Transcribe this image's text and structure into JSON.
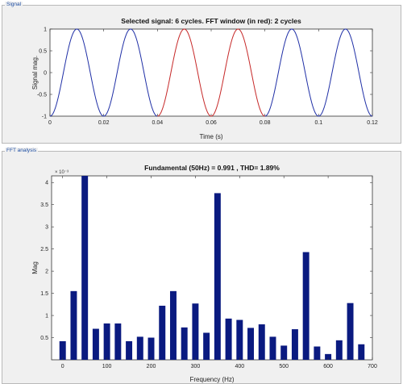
{
  "panels": {
    "signal": {
      "title": "Signal"
    },
    "fft": {
      "title": "FFT analysis"
    }
  },
  "colors": {
    "panel_bg": "#f0f0f0",
    "border": "#b9b9b9",
    "plot_bg": "#ffffff",
    "signal_blue": "#1f2fa6",
    "window_red": "#c62828",
    "bar_navy": "#0a1a80",
    "panel_label": "#1f4fa3"
  },
  "chart_data": [
    {
      "type": "line",
      "title": "Selected signal: 6 cycles. FFT window (in red): 2 cycles",
      "xlabel": "Time (s)",
      "ylabel": "Signal mag.",
      "xlim": [
        0,
        0.12
      ],
      "ylim": [
        -1,
        1
      ],
      "xticks": [
        "0",
        "0.02",
        "0.04",
        "0.06",
        "0.08",
        "0.1",
        "0.12"
      ],
      "yticks": [
        "1",
        "0.5",
        "0",
        "-0.5",
        "-1"
      ],
      "frequency_hz": 50,
      "amplitude": 1,
      "series": [
        {
          "x_range": [
            0,
            0.04
          ],
          "color": "#1f2fa6"
        },
        {
          "x_range": [
            0.04,
            0.08
          ],
          "color": "#c62828"
        },
        {
          "x_range": [
            0.08,
            0.12
          ],
          "color": "#1f2fa6"
        }
      ]
    },
    {
      "type": "bar",
      "title": "Fundamental (50Hz) = 0.991 , THD= 1.89%",
      "xlabel": "Frequency (Hz)",
      "ylabel": "Mag",
      "y_exponent": "× 10⁻³",
      "xlim": [
        -25,
        700
      ],
      "ylim": [
        0,
        4.15
      ],
      "xticks": [
        "0",
        "100",
        "200",
        "300",
        "400",
        "500",
        "600",
        "700"
      ],
      "yticks": [
        "0.5",
        "1",
        "1.5",
        "2",
        "2.5",
        "3",
        "3.5",
        "4"
      ],
      "x": [
        0,
        25,
        50,
        75,
        100,
        125,
        150,
        175,
        200,
        225,
        250,
        275,
        300,
        325,
        350,
        375,
        400,
        425,
        450,
        475,
        500,
        525,
        550,
        575,
        600,
        625,
        650,
        675
      ],
      "values": [
        0.42,
        1.55,
        4.2,
        0.7,
        0.82,
        0.82,
        0.42,
        0.52,
        0.5,
        1.22,
        1.55,
        0.73,
        1.27,
        0.61,
        3.76,
        0.93,
        0.9,
        0.72,
        0.8,
        0.52,
        0.32,
        0.69,
        2.43,
        0.3,
        0.13,
        0.44,
        1.28,
        0.35
      ]
    }
  ]
}
